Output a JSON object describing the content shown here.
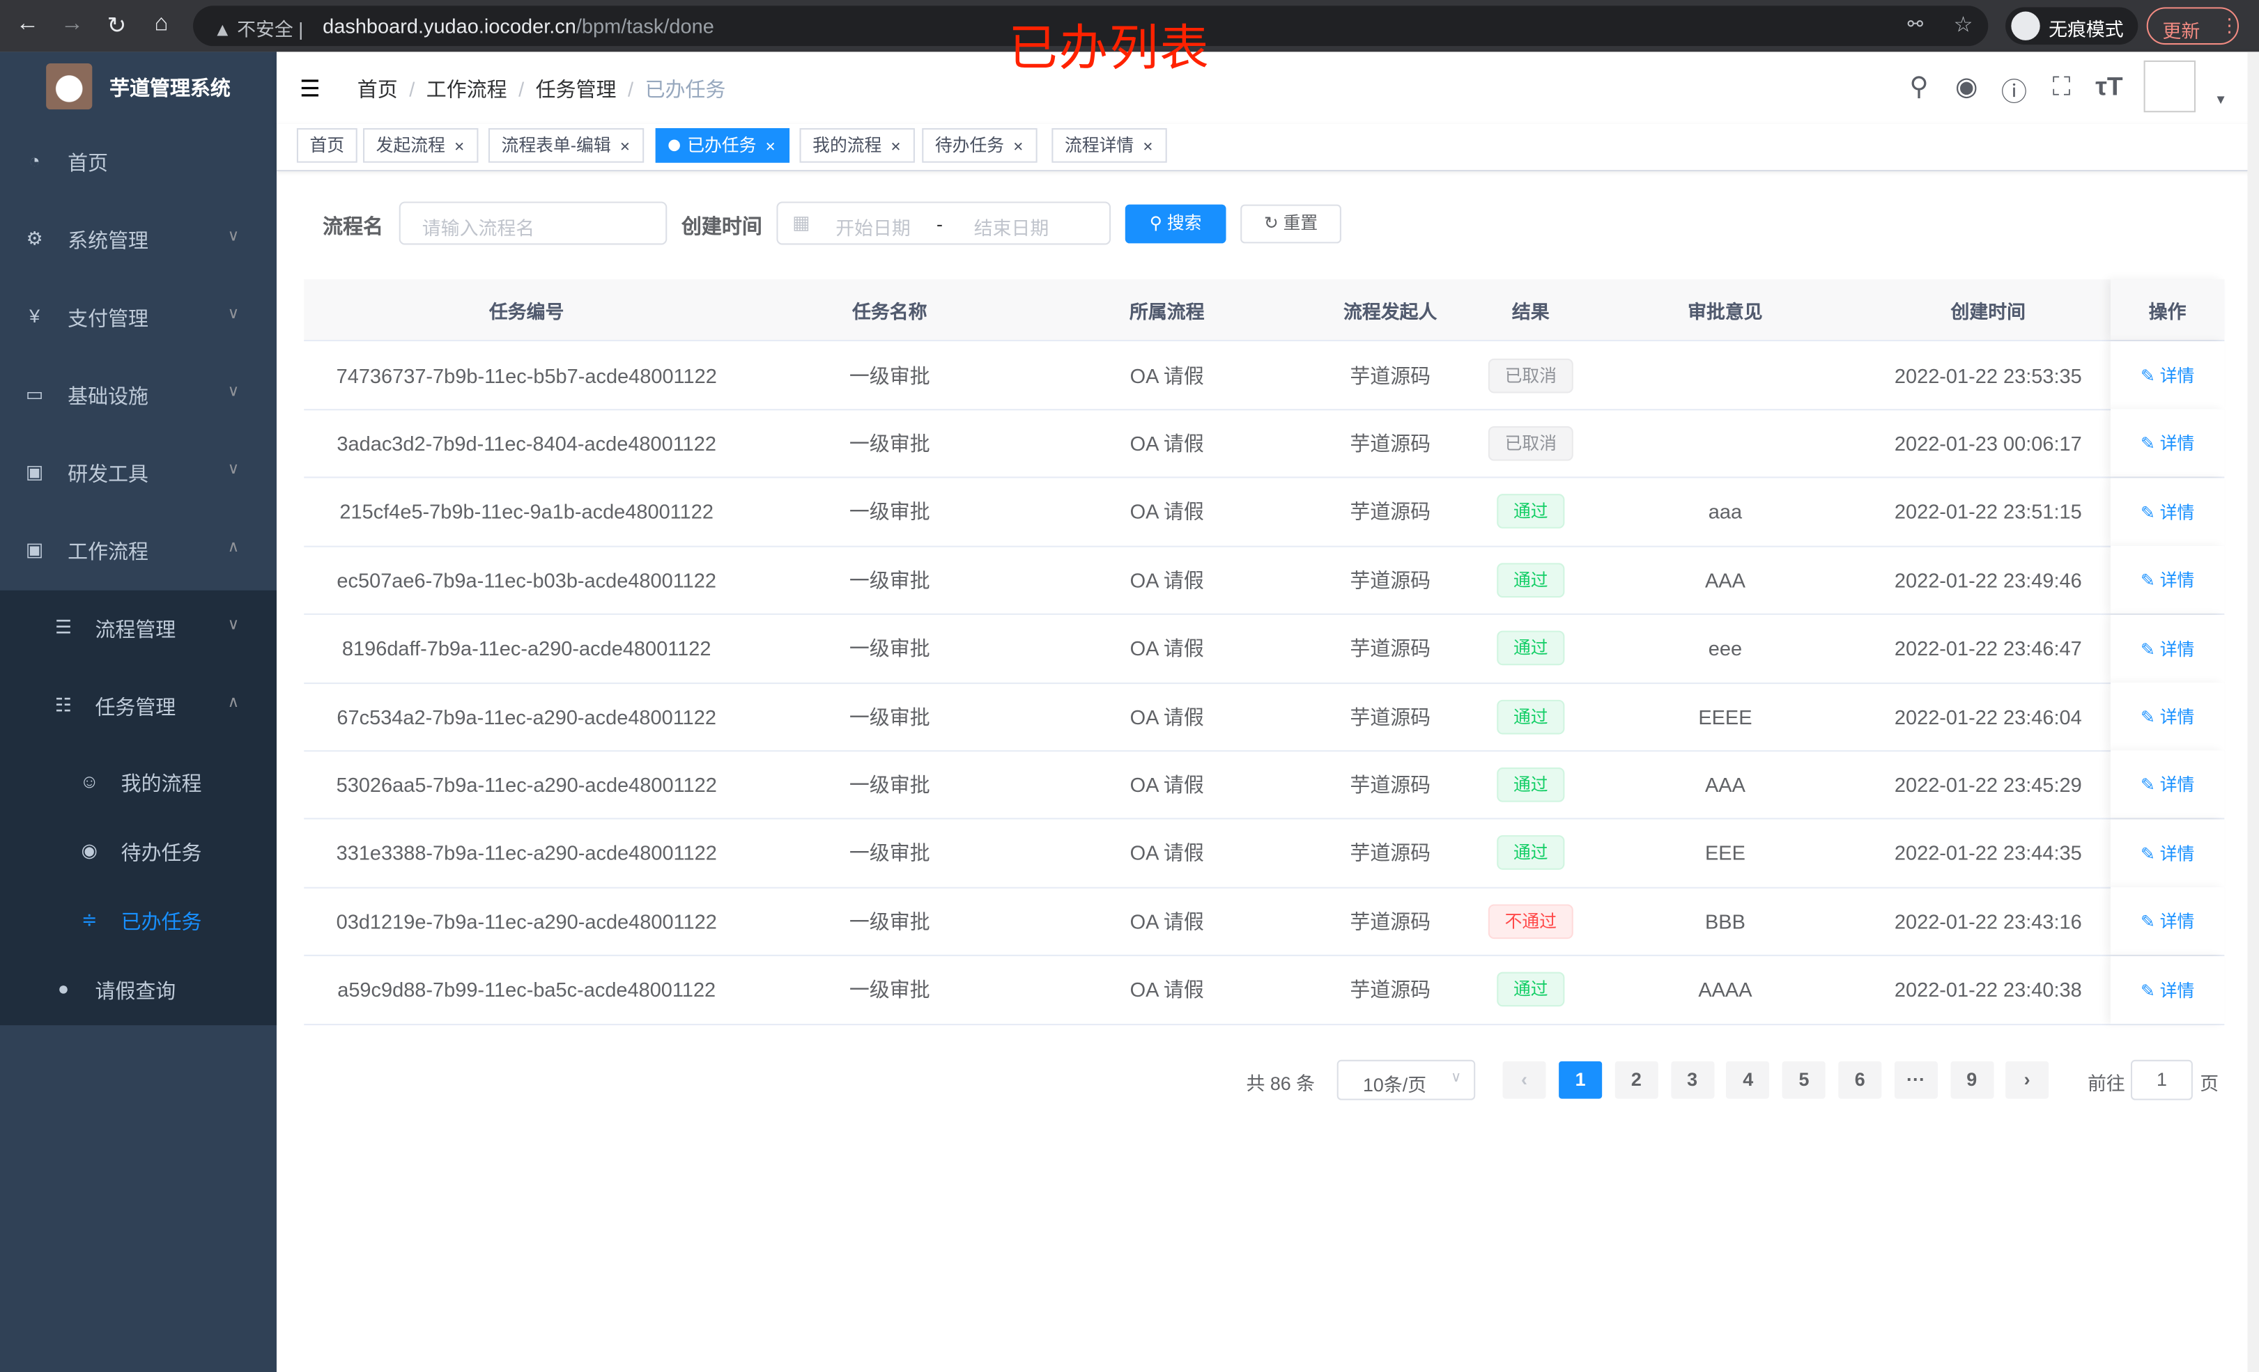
{
  "browser": {
    "insecure_label": "不安全",
    "url_host": "dashboard.yudao.iocoder.cn",
    "url_path": "/bpm/task/done",
    "incognito_label": "无痕模式",
    "update_label": "更新"
  },
  "annotation": "已办列表",
  "sidebar": {
    "title": "芋道管理系统",
    "items": [
      {
        "label": "首页",
        "icon": "dashboard-icon"
      },
      {
        "label": "系统管理",
        "icon": "gear-icon"
      },
      {
        "label": "支付管理",
        "icon": "yen-icon"
      },
      {
        "label": "基础设施",
        "icon": "monitor-icon"
      },
      {
        "label": "研发工具",
        "icon": "toolbox-icon"
      },
      {
        "label": "工作流程",
        "icon": "toolbox-icon"
      }
    ],
    "sub_items": [
      {
        "label": "流程管理",
        "icon": "list-icon"
      },
      {
        "label": "任务管理",
        "icon": "tree-icon"
      },
      {
        "label": "我的流程",
        "icon": "face-icon"
      },
      {
        "label": "待办任务",
        "icon": "eye-icon"
      },
      {
        "label": "已办任务",
        "icon": "eye-closed-icon"
      },
      {
        "label": "请假查询",
        "icon": "user-icon"
      }
    ]
  },
  "breadcrumb": [
    "首页",
    "工作流程",
    "任务管理",
    "已办任务"
  ],
  "tags": [
    "首页",
    "发起流程",
    "流程表单-编辑",
    "已办任务",
    "我的流程",
    "待办任务",
    "流程详情"
  ],
  "active_tag": "已办任务",
  "form": {
    "name_label": "流程名",
    "name_placeholder": "请输入流程名",
    "time_label": "创建时间",
    "start_placeholder": "开始日期",
    "range_sep": "-",
    "end_placeholder": "结束日期",
    "search_label": "搜索",
    "reset_label": "重置"
  },
  "table": {
    "columns": [
      "任务编号",
      "任务名称",
      "所属流程",
      "流程发起人",
      "结果",
      "审批意见",
      "创建时间",
      "操作"
    ],
    "action_label": "详情",
    "rows": [
      {
        "id": "74736737-7b9b-11ec-b5b7-acde48001122",
        "name": "一级审批",
        "process": "OA 请假",
        "starter": "芋道源码",
        "result": "已取消",
        "status": "cancel",
        "comment": "",
        "time": "2022-01-22 23:53:35"
      },
      {
        "id": "3adac3d2-7b9d-11ec-8404-acde48001122",
        "name": "一级审批",
        "process": "OA 请假",
        "starter": "芋道源码",
        "result": "已取消",
        "status": "cancel",
        "comment": "",
        "time": "2022-01-23 00:06:17"
      },
      {
        "id": "215cf4e5-7b9b-11ec-9a1b-acde48001122",
        "name": "一级审批",
        "process": "OA 请假",
        "starter": "芋道源码",
        "result": "通过",
        "status": "pass",
        "comment": "aaa",
        "time": "2022-01-22 23:51:15"
      },
      {
        "id": "ec507ae6-7b9a-11ec-b03b-acde48001122",
        "name": "一级审批",
        "process": "OA 请假",
        "starter": "芋道源码",
        "result": "通过",
        "status": "pass",
        "comment": "AAA",
        "time": "2022-01-22 23:49:46"
      },
      {
        "id": "8196daff-7b9a-11ec-a290-acde48001122",
        "name": "一级审批",
        "process": "OA 请假",
        "starter": "芋道源码",
        "result": "通过",
        "status": "pass",
        "comment": "eee",
        "time": "2022-01-22 23:46:47"
      },
      {
        "id": "67c534a2-7b9a-11ec-a290-acde48001122",
        "name": "一级审批",
        "process": "OA 请假",
        "starter": "芋道源码",
        "result": "通过",
        "status": "pass",
        "comment": "EEEE",
        "time": "2022-01-22 23:46:04"
      },
      {
        "id": "53026aa5-7b9a-11ec-a290-acde48001122",
        "name": "一级审批",
        "process": "OA 请假",
        "starter": "芋道源码",
        "result": "通过",
        "status": "pass",
        "comment": "AAA",
        "time": "2022-01-22 23:45:29"
      },
      {
        "id": "331e3388-7b9a-11ec-a290-acde48001122",
        "name": "一级审批",
        "process": "OA 请假",
        "starter": "芋道源码",
        "result": "通过",
        "status": "pass",
        "comment": "EEE",
        "time": "2022-01-22 23:44:35"
      },
      {
        "id": "03d1219e-7b9a-11ec-a290-acde48001122",
        "name": "一级审批",
        "process": "OA 请假",
        "starter": "芋道源码",
        "result": "不通过",
        "status": "reject",
        "comment": "BBB",
        "time": "2022-01-22 23:43:16"
      },
      {
        "id": "a59c9d88-7b99-11ec-ba5c-acde48001122",
        "name": "一级审批",
        "process": "OA 请假",
        "starter": "芋道源码",
        "result": "通过",
        "status": "pass",
        "comment": "AAAA",
        "time": "2022-01-22 23:40:38"
      }
    ]
  },
  "pagination": {
    "total_label": "共 86 条",
    "page_size": "10条/页",
    "pages": [
      "1",
      "2",
      "3",
      "4",
      "5",
      "6",
      "···",
      "9"
    ],
    "current": "1",
    "goto_prefix": "前往",
    "goto_value": "1",
    "goto_suffix": "页"
  },
  "colors": {
    "primary": "#1890ff",
    "sidebar": "#304156",
    "submenu": "#1f2d3d",
    "pass": "#13ce66",
    "reject": "#ff4949",
    "cancel": "#909399",
    "annotation": "#ff2200"
  }
}
